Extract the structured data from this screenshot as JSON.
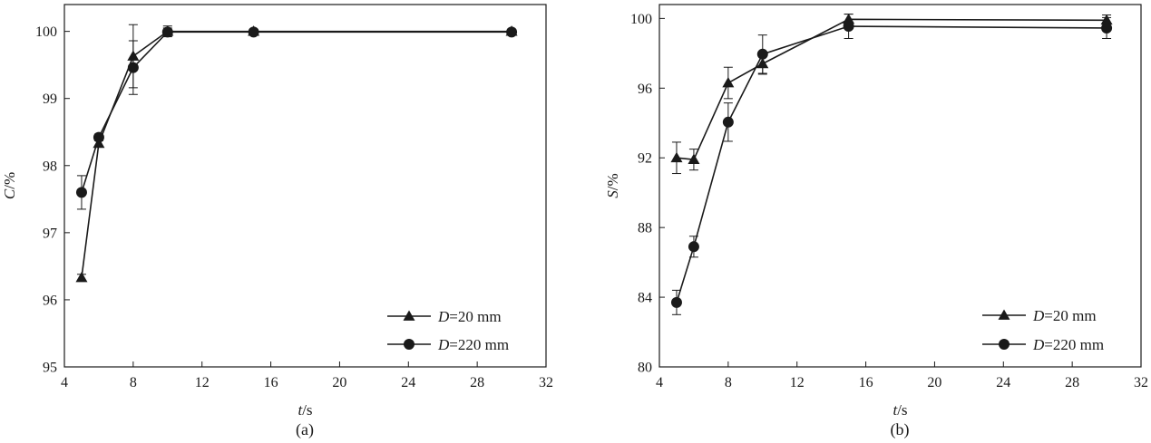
{
  "chart_data": [
    {
      "type": "line",
      "panel_label": "(a)",
      "ylabel_var": "C",
      "ylabel_unit": "/%",
      "xlabel_var": "t",
      "xlabel_unit": "/s",
      "xlim": [
        4,
        32
      ],
      "ylim": [
        95,
        100.4
      ],
      "xticks": [
        "4",
        "8",
        "12",
        "16",
        "20",
        "24",
        "28",
        "32"
      ],
      "yticks": [
        "95",
        "96",
        "97",
        "98",
        "99",
        "100"
      ],
      "legend_position": "bottom-right",
      "series": [
        {
          "name_var": "D",
          "name_value": "=20 mm",
          "marker": "triangle",
          "x": [
            5,
            6,
            8,
            10,
            15,
            30
          ],
          "y": [
            96.33,
            98.33,
            99.63,
            100,
            100,
            100
          ],
          "err": [
            0.05,
            0.05,
            0.47,
            0.08,
            0.03,
            0.03
          ]
        },
        {
          "name_var": "D",
          "name_value": "=220 mm",
          "marker": "circle",
          "x": [
            5,
            6,
            8,
            10,
            15,
            30
          ],
          "y": [
            97.6,
            98.42,
            99.46,
            99.99,
            99.99,
            99.99
          ],
          "err": [
            0.25,
            0.05,
            0.4,
            0.06,
            0.03,
            0.03
          ]
        }
      ]
    },
    {
      "type": "line",
      "panel_label": "(b)",
      "ylabel_var": "S",
      "ylabel_unit": "/%",
      "xlabel_var": "t",
      "xlabel_unit": "/s",
      "xlim": [
        4,
        32
      ],
      "ylim": [
        80,
        100.8
      ],
      "xticks": [
        "4",
        "8",
        "12",
        "16",
        "20",
        "24",
        "28",
        "32"
      ],
      "yticks": [
        "80",
        "84",
        "88",
        "92",
        "96",
        "100"
      ],
      "legend_position": "bottom-right",
      "series": [
        {
          "name_var": "D",
          "name_value": "=20 mm",
          "marker": "triangle",
          "x": [
            5,
            6,
            8,
            10,
            15,
            30
          ],
          "y": [
            92.0,
            91.9,
            96.3,
            97.4,
            99.95,
            99.9
          ],
          "err": [
            0.9,
            0.6,
            0.9,
            0.6,
            0.3,
            0.3
          ]
        },
        {
          "name_var": "D",
          "name_value": "=220 mm",
          "marker": "circle",
          "x": [
            5,
            6,
            8,
            10,
            15,
            30
          ],
          "y": [
            83.7,
            86.9,
            94.05,
            97.95,
            99.55,
            99.45
          ],
          "err": [
            0.7,
            0.6,
            1.1,
            1.1,
            0.7,
            0.6
          ]
        }
      ]
    }
  ]
}
